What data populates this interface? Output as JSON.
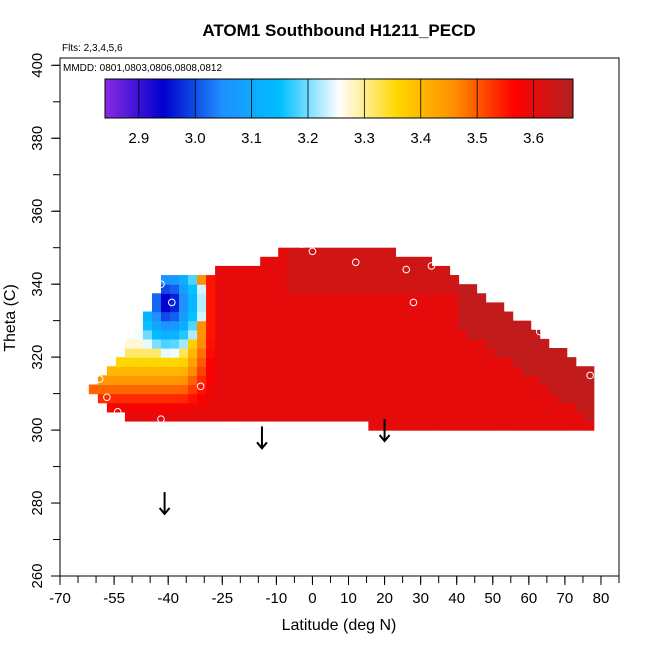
{
  "chart_data": {
    "type": "heatmap",
    "title": "ATOM1 Southbound H1211_PECD",
    "flights_label": "Flts: 2,3,4,5,6",
    "dates_label": "MMDD: 0801,0803,0806,0808,0812",
    "xlabel": "Latitude (deg N)",
    "ylabel": "Theta (C)",
    "xlim": [
      -70,
      85
    ],
    "ylim": [
      260,
      402
    ],
    "x_ticks": [
      -70,
      -55,
      -40,
      -25,
      -10,
      0,
      10,
      20,
      30,
      40,
      50,
      60,
      70,
      80
    ],
    "x_tick_labels": [
      "-70",
      "-55",
      "-40",
      "-25",
      "-10",
      "0",
      "10",
      "20",
      "30",
      "40",
      "50",
      "60",
      "70",
      "80"
    ],
    "y_ticks": [
      260,
      280,
      300,
      320,
      340,
      360,
      380,
      400
    ],
    "y_tick_labels": [
      "260",
      "280",
      "300",
      "320",
      "340",
      "360",
      "380",
      "400"
    ],
    "colorbar": {
      "min": 2.84,
      "max": 3.67,
      "ticks": [
        2.9,
        3.0,
        3.1,
        3.2,
        3.3,
        3.4,
        3.5,
        3.6
      ],
      "tick_labels": [
        "2.9",
        "3.0",
        "3.1",
        "3.2",
        "3.3",
        "3.4",
        "3.5",
        "3.6"
      ],
      "colors": [
        "#8a2be2",
        "#0000cd",
        "#1e90ff",
        "#00bfff",
        "#ffffff",
        "#ffd700",
        "#ff8c00",
        "#ff0000",
        "#b22222"
      ]
    },
    "field": {
      "base_value": 3.6,
      "envelope_top": [
        [
          -62,
          311
        ],
        [
          -55,
          316
        ],
        [
          -48,
          327
        ],
        [
          -42,
          340
        ],
        [
          -30,
          342
        ],
        [
          -15,
          345
        ],
        [
          -5,
          349
        ],
        [
          0,
          349.5
        ],
        [
          10,
          349
        ],
        [
          20,
          348
        ],
        [
          30,
          346
        ],
        [
          40,
          341
        ],
        [
          50,
          334
        ],
        [
          60,
          327
        ],
        [
          70,
          320
        ],
        [
          77,
          315
        ]
      ],
      "envelope_bottom": [
        [
          -62,
          311
        ],
        [
          -55,
          305
        ],
        [
          -48,
          302
        ],
        [
          -40,
          302
        ],
        [
          -20,
          302
        ],
        [
          0,
          302
        ],
        [
          15,
          302
        ],
        [
          17,
          300
        ],
        [
          77,
          300
        ],
        [
          77,
          315
        ]
      ],
      "low_center": {
        "lat": -40,
        "theta": 335,
        "value": 2.9
      },
      "gradient_band_lat": [
        -36,
        -27
      ]
    },
    "observations": [
      {
        "lat": -42,
        "theta": 340
      },
      {
        "lat": -39,
        "theta": 335
      },
      {
        "lat": -59,
        "theta": 314
      },
      {
        "lat": -57,
        "theta": 309
      },
      {
        "lat": -54,
        "theta": 305
      },
      {
        "lat": -42,
        "theta": 303
      },
      {
        "lat": -31,
        "theta": 312
      },
      {
        "lat": -3,
        "theta": 351
      },
      {
        "lat": 0,
        "theta": 349
      },
      {
        "lat": 12,
        "theta": 346
      },
      {
        "lat": 26,
        "theta": 344
      },
      {
        "lat": 33,
        "theta": 345
      },
      {
        "lat": 28,
        "theta": 335
      },
      {
        "lat": 63,
        "theta": 327
      },
      {
        "lat": 77,
        "theta": 315
      }
    ],
    "arrows": [
      {
        "lat": -41,
        "theta_top": 283,
        "theta_bottom": 277
      },
      {
        "lat": -14,
        "theta_top": 301,
        "theta_bottom": 295
      },
      {
        "lat": 20,
        "theta_top": 303,
        "theta_bottom": 297
      }
    ]
  }
}
